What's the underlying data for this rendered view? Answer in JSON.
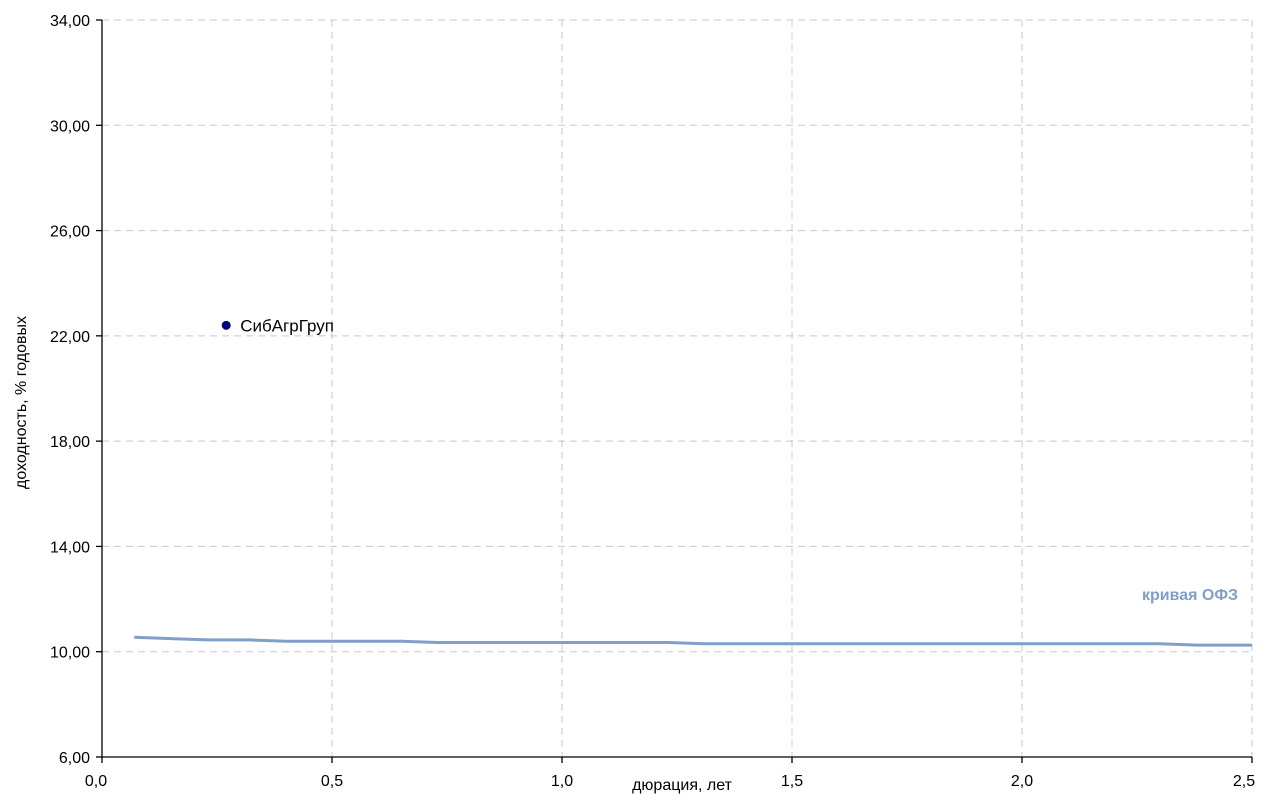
{
  "chart_data": {
    "type": "scatter",
    "xlabel": "дюрация, лет",
    "ylabel": "доходность, % годовых",
    "xlim": [
      0,
      2.5
    ],
    "ylim": [
      6,
      34
    ],
    "x_ticks": [
      0,
      0.5,
      1.0,
      1.5,
      2.0,
      2.5
    ],
    "x_tick_labels": [
      "0,0",
      "0,5",
      "1,0",
      "1,5",
      "2,0",
      "2,5"
    ],
    "y_ticks": [
      6,
      10,
      14,
      18,
      22,
      26,
      30,
      34
    ],
    "y_tick_labels": [
      "6,00",
      "10,00",
      "14,00",
      "18,00",
      "22,00",
      "26,00",
      "30,00",
      "34,00"
    ],
    "grid": true,
    "series": [
      {
        "name": "кривая ОФЗ",
        "kind": "line",
        "color": "#7f9fc8",
        "points": [
          {
            "x": 0.07,
            "y": 10.55
          },
          {
            "x": 0.15,
            "y": 10.5
          },
          {
            "x": 0.23,
            "y": 10.45
          },
          {
            "x": 0.32,
            "y": 10.45
          },
          {
            "x": 0.4,
            "y": 10.4
          },
          {
            "x": 0.65,
            "y": 10.4
          },
          {
            "x": 0.73,
            "y": 10.35
          },
          {
            "x": 1.23,
            "y": 10.35
          },
          {
            "x": 1.31,
            "y": 10.3
          },
          {
            "x": 2.3,
            "y": 10.3
          },
          {
            "x": 2.38,
            "y": 10.25
          },
          {
            "x": 2.5,
            "y": 10.25
          }
        ]
      },
      {
        "name": "СибАгрГруп",
        "kind": "point",
        "color": "#00007a",
        "points": [
          {
            "x": 0.27,
            "y": 22.4
          }
        ]
      }
    ]
  }
}
